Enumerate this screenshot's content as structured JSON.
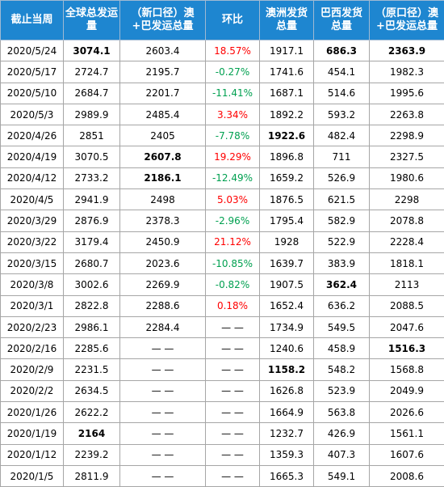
{
  "headers": [
    "截止当周",
    "全球总发运量",
    "（新口径）澳+巴发运总量",
    "环比",
    "澳洲发货总量",
    "巴西发货总量",
    "（原口径）澳+巴发运总量"
  ],
  "rows": [
    {
      "date": "2020/5/24",
      "global": "3074.1",
      "new_ab": "2603.4",
      "mom": "18.57%",
      "mom_dir": "up",
      "aus": "1917.1",
      "bra": "686.3",
      "old_ab": "2363.9",
      "bold": [
        "global",
        "bra",
        "old_ab"
      ]
    },
    {
      "date": "2020/5/17",
      "global": "2724.7",
      "new_ab": "2195.7",
      "mom": "-0.27%",
      "mom_dir": "down",
      "aus": "1741.6",
      "bra": "454.1",
      "old_ab": "1982.3",
      "bold": []
    },
    {
      "date": "2020/5/10",
      "global": "2684.7",
      "new_ab": "2201.7",
      "mom": "-11.41%",
      "mom_dir": "down",
      "aus": "1687.1",
      "bra": "514.6",
      "old_ab": "1995.6",
      "bold": []
    },
    {
      "date": "2020/5/3",
      "global": "2989.9",
      "new_ab": "2485.4",
      "mom": "3.34%",
      "mom_dir": "up",
      "aus": "1892.2",
      "bra": "593.2",
      "old_ab": "2263.8",
      "bold": []
    },
    {
      "date": "2020/4/26",
      "global": "2851",
      "new_ab": "2405",
      "mom": "-7.78%",
      "mom_dir": "down",
      "aus": "1922.6",
      "bra": "482.4",
      "old_ab": "2298.9",
      "bold": [
        "aus"
      ]
    },
    {
      "date": "2020/4/19",
      "global": "3070.5",
      "new_ab": "2607.8",
      "mom": "19.29%",
      "mom_dir": "up",
      "aus": "1896.8",
      "bra": "711",
      "old_ab": "2327.5",
      "bold": [
        "new_ab"
      ]
    },
    {
      "date": "2020/4/12",
      "global": "2733.2",
      "new_ab": "2186.1",
      "mom": "-12.49%",
      "mom_dir": "down",
      "aus": "1659.2",
      "bra": "526.9",
      "old_ab": "1980.6",
      "bold": [
        "new_ab"
      ]
    },
    {
      "date": "2020/4/5",
      "global": "2941.9",
      "new_ab": "2498",
      "mom": "5.03%",
      "mom_dir": "up",
      "aus": "1876.5",
      "bra": "621.5",
      "old_ab": "2298",
      "bold": []
    },
    {
      "date": "2020/3/29",
      "global": "2876.9",
      "new_ab": "2378.3",
      "mom": "-2.96%",
      "mom_dir": "down",
      "aus": "1795.4",
      "bra": "582.9",
      "old_ab": "2078.8",
      "bold": []
    },
    {
      "date": "2020/3/22",
      "global": "3179.4",
      "new_ab": "2450.9",
      "mom": "21.12%",
      "mom_dir": "up",
      "aus": "1928",
      "bra": "522.9",
      "old_ab": "2228.4",
      "bold": []
    },
    {
      "date": "2020/3/15",
      "global": "2680.7",
      "new_ab": "2023.6",
      "mom": "-10.85%",
      "mom_dir": "down",
      "aus": "1639.7",
      "bra": "383.9",
      "old_ab": "1818.1",
      "bold": []
    },
    {
      "date": "2020/3/8",
      "global": "3002.6",
      "new_ab": "2269.9",
      "mom": "-0.82%",
      "mom_dir": "down",
      "aus": "1907.5",
      "bra": "362.4",
      "old_ab": "2113",
      "bold": [
        "bra"
      ]
    },
    {
      "date": "2020/3/1",
      "global": "2822.8",
      "new_ab": "2288.6",
      "mom": "0.18%",
      "mom_dir": "up",
      "aus": "1652.4",
      "bra": "636.2",
      "old_ab": "2088.5",
      "bold": []
    },
    {
      "date": "2020/2/23",
      "global": "2986.1",
      "new_ab": "2284.4",
      "mom": "— —",
      "mom_dir": "none",
      "aus": "1734.9",
      "bra": "549.5",
      "old_ab": "2047.6",
      "bold": []
    },
    {
      "date": "2020/2/16",
      "global": "2285.6",
      "new_ab": "— —",
      "mom": "— —",
      "mom_dir": "none",
      "aus": "1240.6",
      "bra": "458.9",
      "old_ab": "1516.3",
      "bold": [
        "old_ab"
      ]
    },
    {
      "date": "2020/2/9",
      "global": "2231.5",
      "new_ab": "— —",
      "mom": "— —",
      "mom_dir": "none",
      "aus": "1158.2",
      "bra": "548.2",
      "old_ab": "1568.8",
      "bold": [
        "aus"
      ]
    },
    {
      "date": "2020/2/2",
      "global": "2634.5",
      "new_ab": "— —",
      "mom": "— —",
      "mom_dir": "none",
      "aus": "1626.8",
      "bra": "523.9",
      "old_ab": "2049.9",
      "bold": []
    },
    {
      "date": "2020/1/26",
      "global": "2622.2",
      "new_ab": "— —",
      "mom": "— —",
      "mom_dir": "none",
      "aus": "1664.9",
      "bra": "563.8",
      "old_ab": "2026.6",
      "bold": []
    },
    {
      "date": "2020/1/19",
      "global": "2164",
      "new_ab": "— —",
      "mom": "— —",
      "mom_dir": "none",
      "aus": "1232.7",
      "bra": "426.9",
      "old_ab": "1561.1",
      "bold": [
        "global"
      ]
    },
    {
      "date": "2020/1/12",
      "global": "2239.2",
      "new_ab": "— —",
      "mom": "— —",
      "mom_dir": "none",
      "aus": "1359.3",
      "bra": "407.3",
      "old_ab": "1607.6",
      "bold": []
    },
    {
      "date": "2020/1/5",
      "global": "2811.9",
      "new_ab": "— —",
      "mom": "— —",
      "mom_dir": "none",
      "aus": "1665.3",
      "bra": "549.1",
      "old_ab": "2008.6",
      "bold": []
    }
  ],
  "colors": {
    "header_bg": "#1e86d0",
    "header_text": "#ffffff",
    "increase": "#ff0000",
    "decrease": "#00a050"
  }
}
